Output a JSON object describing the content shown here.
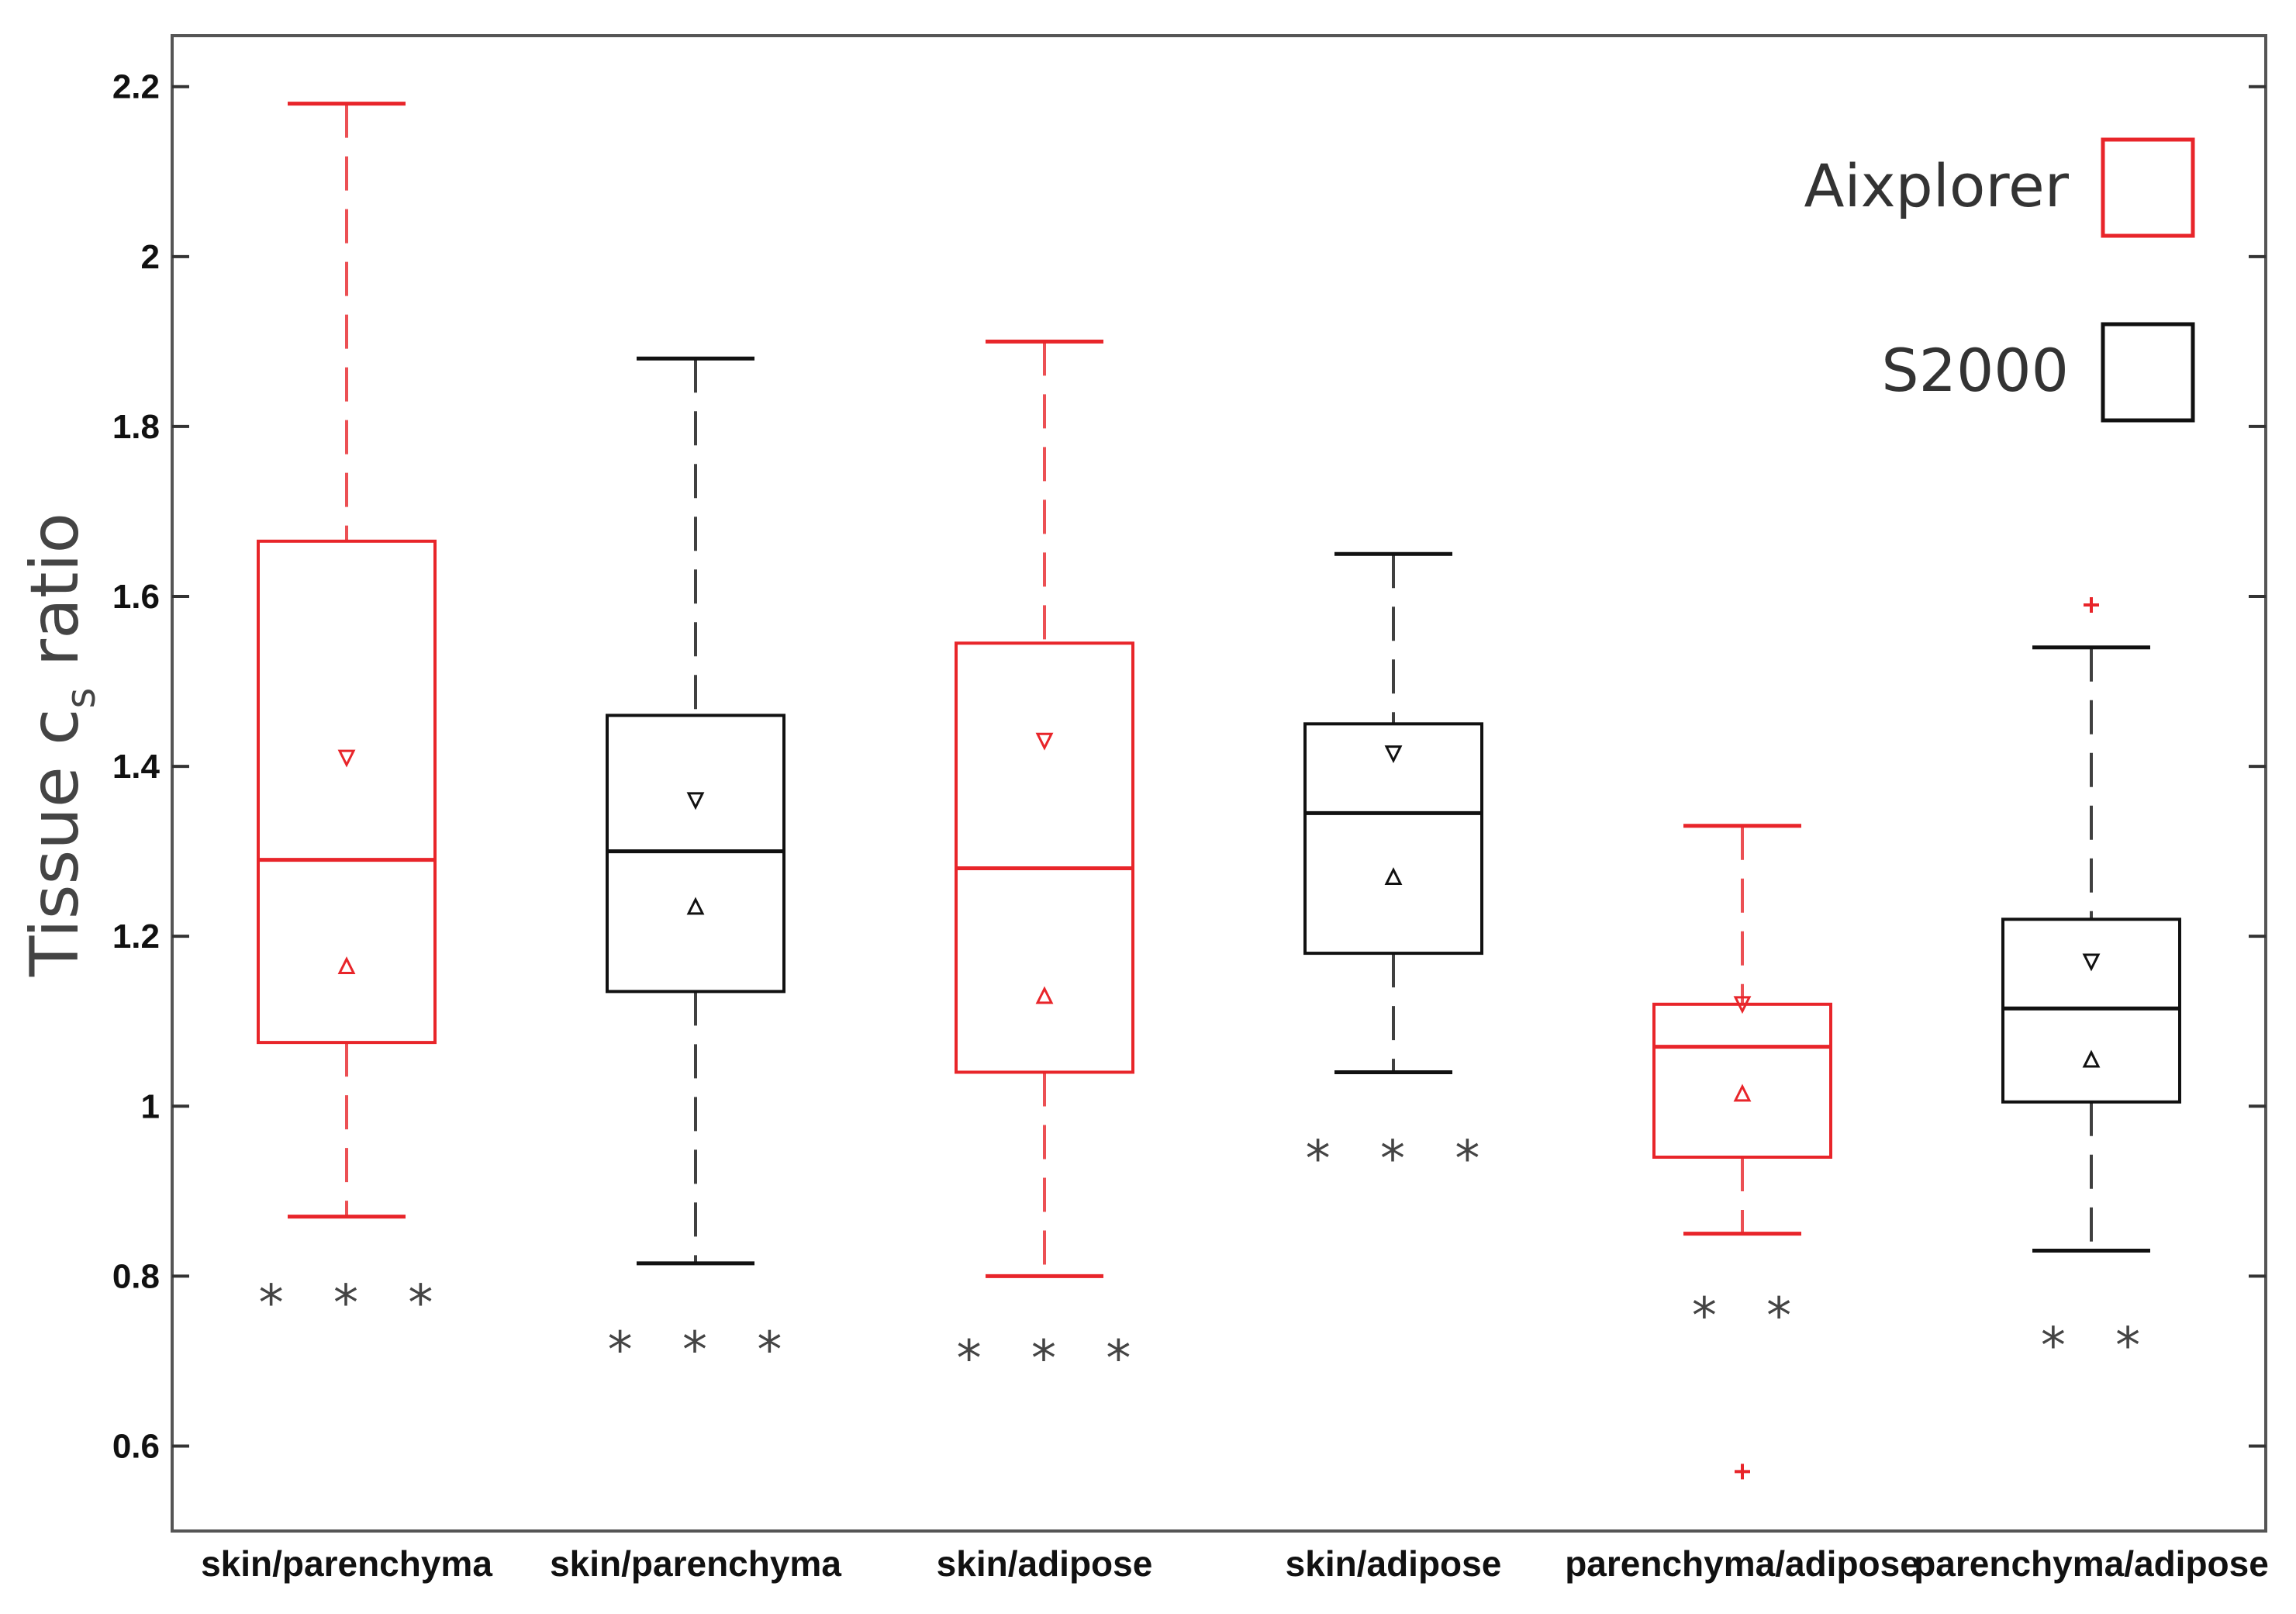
{
  "chart_data": {
    "type": "box",
    "title": "",
    "ylabel": "Tissue c",
    "ylabel_subscript": "s",
    "ylabel_suffix": " ratio",
    "xlabel": "",
    "ylim": [
      0.5,
      2.26
    ],
    "yticks": [
      0.6,
      0.8,
      1,
      1.2,
      1.4,
      1.6,
      1.8,
      2,
      2.2
    ],
    "ytick_labels": [
      "0.6",
      "0.8",
      "1",
      "1.2",
      "1.4",
      "1.6",
      "1.8",
      "2",
      "2.2"
    ],
    "legend": [
      {
        "name": "Aixplorer",
        "color": "#e8252a"
      },
      {
        "name": "S2000",
        "color": "#111111"
      }
    ],
    "legend_position": "top-right",
    "boxes": [
      {
        "category": "skin/parenchyma",
        "series": "Aixplorer",
        "color": "#e8252a",
        "whisker_low": 0.87,
        "q1": 1.075,
        "median": 1.29,
        "q3": 1.665,
        "whisker_high": 2.18,
        "marker_down": 1.41,
        "marker_up": 1.165,
        "outliers": [],
        "significance": "* * *",
        "significance_y": 0.77
      },
      {
        "category": "skin/parenchyma",
        "series": "S2000",
        "color": "#111111",
        "whisker_low": 0.815,
        "q1": 1.135,
        "median": 1.3,
        "q3": 1.46,
        "whisker_high": 1.88,
        "marker_down": 1.36,
        "marker_up": 1.235,
        "outliers": [],
        "significance": "* * *",
        "significance_y": 0.715
      },
      {
        "category": "skin/adipose",
        "series": "Aixplorer",
        "color": "#e8252a",
        "whisker_low": 0.8,
        "q1": 1.04,
        "median": 1.28,
        "q3": 1.545,
        "whisker_high": 1.9,
        "marker_down": 1.43,
        "marker_up": 1.13,
        "outliers": [],
        "significance": "* * *",
        "significance_y": 0.705
      },
      {
        "category": "skin/adipose",
        "series": "S2000",
        "color": "#111111",
        "whisker_low": 1.04,
        "q1": 1.18,
        "median": 1.345,
        "q3": 1.45,
        "whisker_high": 1.65,
        "marker_down": 1.415,
        "marker_up": 1.27,
        "outliers": [],
        "significance": "* * *",
        "significance_y": 0.94
      },
      {
        "category": "parenchyma/adipose",
        "series": "Aixplorer",
        "color": "#e8252a",
        "whisker_low": 0.85,
        "q1": 0.94,
        "median": 1.07,
        "q3": 1.12,
        "whisker_high": 1.33,
        "marker_down": 1.12,
        "marker_up": 1.015,
        "outliers": [
          0.57
        ],
        "significance": "* *",
        "significance_y": 0.755
      },
      {
        "category": "parenchyma/adipose",
        "series": "S2000",
        "color": "#111111",
        "whisker_low": 0.83,
        "q1": 1.005,
        "median": 1.115,
        "q3": 1.22,
        "whisker_high": 1.54,
        "marker_down": 1.17,
        "marker_up": 1.055,
        "outliers": [
          1.59
        ],
        "significance": "* *",
        "significance_y": 0.72
      }
    ]
  }
}
